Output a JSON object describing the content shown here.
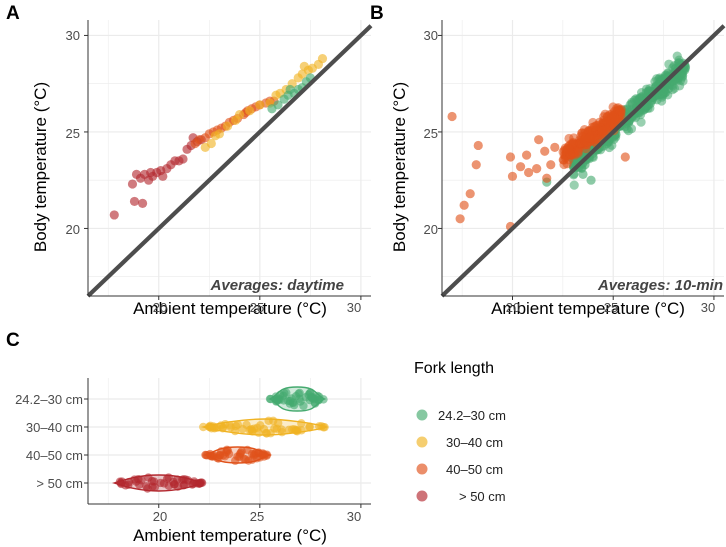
{
  "colors": {
    "green": "#45aa6f",
    "yellow": "#f0b323",
    "orange": "#e0521a",
    "darkred": "#b3282f",
    "grid": "#ebebeb",
    "axis": "#333333",
    "identity": "#4d4d4d"
  },
  "chart_data": [
    {
      "panel": "A",
      "type": "scatter",
      "xlabel": "Ambient temperature (°C)",
      "ylabel": "Body temperature (°C)",
      "xlim": [
        16.5,
        30.5
      ],
      "ylim": [
        16.5,
        30.8
      ],
      "xticks": [
        "20",
        "25",
        "30"
      ],
      "yticks": [
        "20",
        "25",
        "30"
      ],
      "annotation": "Averages: daytime",
      "identity_line": true,
      "series": [
        {
          "name": "> 50 cm",
          "color": "darkred",
          "points": [
            [
              17.8,
              20.7
            ],
            [
              18.8,
              21.4
            ],
            [
              19.2,
              21.3
            ],
            [
              18.7,
              22.3
            ],
            [
              18.9,
              22.8
            ],
            [
              19.1,
              22.6
            ],
            [
              19.3,
              22.8
            ],
            [
              19.5,
              22.5
            ],
            [
              19.6,
              22.9
            ],
            [
              19.7,
              22.7
            ],
            [
              19.9,
              22.9
            ],
            [
              20.1,
              23.0
            ],
            [
              20.2,
              22.7
            ],
            [
              20.4,
              23.1
            ],
            [
              20.6,
              23.3
            ],
            [
              20.8,
              23.5
            ],
            [
              21.0,
              23.5
            ],
            [
              21.2,
              23.6
            ],
            [
              21.4,
              24.1
            ],
            [
              21.6,
              24.3
            ],
            [
              21.9,
              24.5
            ],
            [
              22.1,
              24.6
            ],
            [
              21.7,
              24.7
            ]
          ]
        },
        {
          "name": "40–50 cm",
          "color": "orange",
          "points": [
            [
              21.8,
              24.4
            ],
            [
              22.0,
              24.6
            ],
            [
              22.3,
              24.7
            ],
            [
              22.5,
              24.9
            ],
            [
              22.7,
              25.0
            ],
            [
              22.9,
              25.1
            ],
            [
              23.1,
              25.2
            ],
            [
              23.3,
              25.3
            ],
            [
              23.5,
              25.5
            ],
            [
              23.7,
              25.6
            ],
            [
              23.9,
              25.7
            ],
            [
              24.2,
              25.9
            ],
            [
              24.4,
              26.1
            ],
            [
              24.6,
              26.2
            ],
            [
              24.8,
              26.3
            ],
            [
              25.0,
              26.4
            ],
            [
              25.3,
              26.5
            ],
            [
              25.5,
              26.6
            ],
            [
              25.7,
              26.6
            ],
            [
              24.3,
              26.0
            ]
          ]
        },
        {
          "name": "30–40 cm",
          "color": "yellow",
          "points": [
            [
              22.3,
              24.2
            ],
            [
              22.6,
              24.4
            ],
            [
              22.8,
              24.8
            ],
            [
              23.0,
              24.9
            ],
            [
              23.4,
              25.3
            ],
            [
              23.8,
              25.6
            ],
            [
              24.0,
              25.9
            ],
            [
              24.5,
              26.1
            ],
            [
              25.0,
              26.4
            ],
            [
              25.5,
              26.5
            ],
            [
              25.8,
              26.9
            ],
            [
              26.0,
              27.0
            ],
            [
              26.3,
              27.2
            ],
            [
              26.6,
              27.5
            ],
            [
              26.9,
              27.8
            ],
            [
              27.1,
              28.0
            ],
            [
              27.4,
              28.2
            ],
            [
              27.6,
              28.3
            ],
            [
              27.9,
              28.5
            ],
            [
              28.1,
              28.8
            ],
            [
              27.2,
              28.4
            ]
          ]
        },
        {
          "name": "24.2–30 cm",
          "color": "green",
          "points": [
            [
              25.6,
              26.2
            ],
            [
              25.9,
              26.4
            ],
            [
              26.2,
              26.7
            ],
            [
              26.4,
              26.9
            ],
            [
              26.7,
              27.0
            ],
            [
              26.9,
              27.2
            ],
            [
              27.1,
              27.3
            ],
            [
              27.3,
              27.6
            ],
            [
              26.5,
              27.2
            ],
            [
              27.5,
              27.8
            ]
          ]
        }
      ]
    },
    {
      "panel": "B",
      "type": "scatter",
      "xlabel": "Ambient temperature (°C)",
      "ylabel": "Body temperature (°C)",
      "xlim": [
        16.5,
        30.5
      ],
      "ylim": [
        16.5,
        30.8
      ],
      "xticks": [
        "20",
        "25",
        "30"
      ],
      "yticks": [
        "20",
        "25",
        "30"
      ],
      "annotation": "Averages: 10-min",
      "identity_line": true,
      "series": [
        {
          "name": "24.2–30 cm",
          "color": "green",
          "cluster": {
            "x_range": [
              23.0,
              28.6
            ],
            "slope": 0.93,
            "intercept": 1.85,
            "spread": 0.55,
            "count": 420
          },
          "points": [
            [
              21.7,
              22.4
            ],
            [
              23.5,
              22.8
            ],
            [
              23.9,
              22.5
            ],
            [
              22.9,
              23.7
            ],
            [
              23.6,
              23.3
            ]
          ]
        },
        {
          "name": "40–50 cm",
          "color": "orange",
          "cluster": {
            "x_range": [
              22.5,
              25.4
            ],
            "slope": 0.82,
            "intercept": 5.2,
            "spread": 0.45,
            "count": 230
          },
          "points": [
            [
              17.0,
              25.8
            ],
            [
              17.6,
              21.2
            ],
            [
              17.4,
              20.5
            ],
            [
              17.9,
              21.8
            ],
            [
              18.2,
              23.3
            ],
            [
              18.3,
              24.3
            ],
            [
              19.9,
              23.7
            ],
            [
              19.9,
              20.1
            ],
            [
              20.0,
              22.7
            ],
            [
              20.4,
              23.2
            ],
            [
              20.8,
              22.9
            ],
            [
              21.2,
              23.1
            ],
            [
              21.6,
              24.0
            ],
            [
              21.3,
              24.6
            ],
            [
              21.9,
              23.3
            ],
            [
              22.1,
              24.2
            ],
            [
              20.7,
              23.8
            ],
            [
              21.7,
              22.6
            ],
            [
              25.6,
              23.7
            ]
          ]
        }
      ]
    },
    {
      "panel": "C",
      "type": "strip",
      "xlabel": "Ambient temperature (°C)",
      "xlim": [
        16.5,
        30.5
      ],
      "xticks": [
        "20",
        "25",
        "30"
      ],
      "categories": [
        "24.2–30 cm",
        "30–40 cm",
        "40–50 cm",
        "> 50 cm"
      ],
      "series": [
        {
          "name": "24.2–30 cm",
          "color": "green",
          "range": [
            25.5,
            28.2
          ]
        },
        {
          "name": "30–40 cm",
          "color": "yellow",
          "range": [
            22.2,
            28.3
          ]
        },
        {
          "name": "40–50 cm",
          "color": "orange",
          "range": [
            22.3,
            25.5
          ]
        },
        {
          "name": "> 50 cm",
          "color": "darkred",
          "range": [
            17.8,
            22.2
          ]
        }
      ]
    }
  ],
  "legend": {
    "title": "Fork length",
    "items": [
      {
        "label": "24.2–30 cm",
        "color": "green"
      },
      {
        "label": "30–40 cm",
        "color": "yellow"
      },
      {
        "label": "40–50 cm",
        "color": "orange"
      },
      {
        "label": "> 50 cm",
        "color": "darkred"
      }
    ]
  }
}
